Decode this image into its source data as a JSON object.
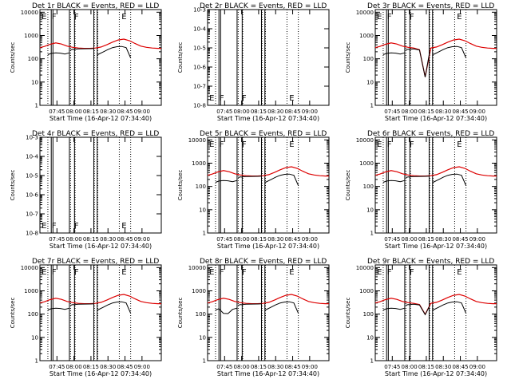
{
  "chart_data": [
    {
      "title": "Det 1r BLACK = Events, RED = LLD",
      "ymode": "counts",
      "ylabel": "Counts/sec",
      "flags": [
        "E",
        "F",
        "F",
        "E"
      ],
      "black": "normal",
      "red": "normal"
    },
    {
      "title": "Det 2r BLACK = Events, RED = LLD",
      "ymode": "small",
      "ylabel": "Counts/sec",
      "flags": [
        "E",
        "F",
        "F",
        "E"
      ],
      "black": "none",
      "red": "none"
    },
    {
      "title": "Det 3r BLACK = Events, RED = LLD",
      "ymode": "counts",
      "ylabel": "Counts/sec",
      "flags": [
        "E",
        "F",
        "F",
        "E"
      ],
      "black": "dip",
      "red": "dip"
    },
    {
      "title": "Det 4r BLACK = Events, RED = LLD",
      "ymode": "small",
      "ylabel": "Counts/sec",
      "flags": [
        "E",
        "F",
        "F",
        "E"
      ],
      "black": "none",
      "red": "none"
    },
    {
      "title": "Det 5r BLACK = Events, RED = LLD",
      "ymode": "counts",
      "ylabel": "Counts/sec",
      "flags": [
        "E",
        "F",
        "F",
        "E"
      ],
      "black": "normal",
      "red": "normal"
    },
    {
      "title": "Det 6r BLACK = Events, RED = LLD",
      "ymode": "counts",
      "ylabel": "Counts/sec",
      "flags": [
        "E",
        "F",
        "F",
        "E"
      ],
      "black": "normal",
      "red": "normal"
    },
    {
      "title": "Det 7r BLACK = Events, RED = LLD",
      "ymode": "counts",
      "ylabel": "Counts/sec",
      "flags": [
        "E",
        "F",
        "F",
        "E"
      ],
      "black": "normal",
      "red": "normal"
    },
    {
      "title": "Det 8r BLACK = Events, RED = LLD",
      "ymode": "counts",
      "ylabel": "Counts/sec",
      "flags": [
        "E",
        "F",
        "F",
        "E"
      ],
      "black": "notch",
      "red": "normal"
    },
    {
      "title": "Det 9r BLACK = Events, RED = LLD",
      "ymode": "counts",
      "ylabel": "Counts/sec",
      "flags": [
        "E",
        "F",
        "F",
        "E"
      ],
      "black": "dipsmall",
      "red": "dipsmall"
    }
  ],
  "shared": {
    "type": "line",
    "xlabel": "Start Time (16-Apr-12 07:34:40)",
    "xticks": [
      "07:45",
      "08:00",
      "08:15",
      "08:30",
      "08:45",
      "09:00"
    ],
    "xlim_minutes": [
      -4,
      103
    ],
    "yticks_counts": [
      "1",
      "10",
      "100",
      "1000",
      "10000"
    ],
    "ylim_counts": [
      1,
      13000
    ],
    "yticks_small": [
      "10-8",
      "10-7",
      "10-6",
      "10-5",
      "10-4",
      "10-3"
    ],
    "ylim_small_exp": [
      -8,
      -3
    ],
    "night_starts_min": [
      3,
      66
    ],
    "day_starts_min": [
      23,
      27,
      44,
      47,
      76
    ],
    "saa_intervals_min": [
      [
        6,
        7.5
      ],
      [
        22,
        26.5
      ],
      [
        43.5,
        46.5
      ]
    ],
    "red_series": {
      "x": [
        -4,
        0,
        5,
        10,
        15,
        20,
        25,
        30,
        35,
        40,
        45,
        50,
        55,
        60,
        65,
        70,
        75,
        80,
        85,
        90,
        95,
        100,
        103
      ],
      "y": [
        300,
        340,
        420,
        480,
        430,
        350,
        310,
        290,
        280,
        280,
        290,
        320,
        400,
        520,
        640,
        700,
        600,
        450,
        350,
        310,
        290,
        280,
        280
      ]
    },
    "black_segments": [
      {
        "x": [
          3,
          6,
          10,
          14,
          18,
          22
        ],
        "y": [
          150,
          170,
          180,
          175,
          160,
          180
        ]
      },
      {
        "x": [
          23,
          25,
          27
        ],
        "y": [
          240,
          260,
          250
        ]
      },
      {
        "x": [
          27,
          30,
          35,
          40,
          44
        ],
        "y": [
          260,
          265,
          270,
          272,
          275
        ]
      },
      {
        "x": [
          47,
          52,
          56,
          60,
          64,
          68,
          72,
          76
        ],
        "y": [
          150,
          200,
          250,
          300,
          330,
          340,
          300,
          110
        ]
      }
    ],
    "colors": {
      "black": "#000000",
      "red": "#dd0000",
      "axis": "#000000"
    }
  }
}
